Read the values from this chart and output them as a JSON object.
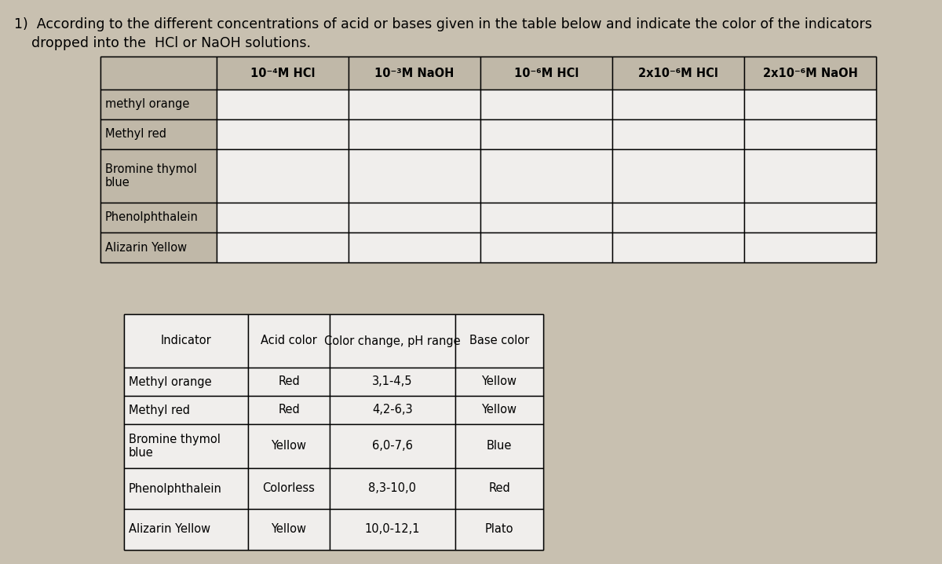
{
  "title_line1": "1)  According to the different concentrations of acid or bases given in the table below and indicate the color of the indicators",
  "title_line2": "    dropped into the  HCl or NaOH solutions.",
  "background_color": "#c8c0b0",
  "table1_bg": "#c0b8a8",
  "cell_bg": "#c8c0b0",
  "white_cell": "#f0eeec",
  "table1_col_headers": [
    "10⁻⁴M HCl",
    "10⁻³M NaOH",
    "10⁻⁶M HCl",
    "2x10⁻⁶M HCl",
    "2x10⁻⁶M NaOH"
  ],
  "table1_row_headers": [
    "methyl orange",
    "Methyl red",
    "Bromine thymol\nblue",
    "Phenolphthalein",
    "Alizarin Yellow"
  ],
  "table2_col_headers": [
    "Indicator",
    "Acid color",
    "Color change, pH range",
    "Base color"
  ],
  "table2_rows": [
    [
      "Methyl orange",
      "Red",
      "3,1-4,5",
      "Yellow"
    ],
    [
      "Methyl red",
      "Red",
      "4,2-6,3",
      "Yellow"
    ],
    [
      "Bromine thymol\nblue",
      "Yellow",
      "6,0-7,6",
      "Blue"
    ],
    [
      "Phenolphthalein",
      "Colorless",
      "8,3-10,0",
      "Red"
    ],
    [
      "Alizarin Yellow",
      "Yellow",
      "10,0-12,1",
      "Plato"
    ]
  ],
  "font_size": 10.5,
  "title_font_size": 12.5
}
